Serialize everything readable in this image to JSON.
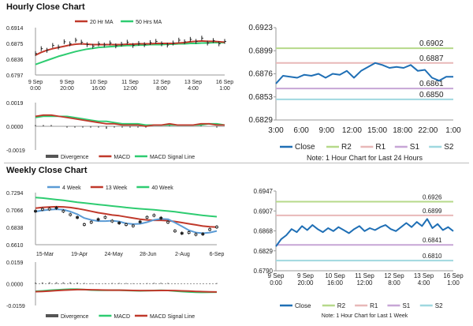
{
  "sections": {
    "hourly_title": "Hourly Close Chart",
    "weekly_title": "Weekly Close Chart"
  },
  "colors": {
    "price": "#222222",
    "ma20": "#c0392b",
    "ma50": "#2ecc71",
    "macd_red": "#c0392b",
    "macd_green": "#2ecc71",
    "hist": "#777777",
    "close_blue": "#1f6fb5",
    "r2": "#b6d98a",
    "r1": "#e8b8b8",
    "s1": "#c7a6d6",
    "s2": "#9fd8df",
    "wk4": "#5b9bd5",
    "wk13": "#c0392b",
    "wk40": "#2ecc71"
  },
  "chart_data": [
    {
      "id": "hourly-price",
      "type": "line",
      "legend": [
        "20 Hr MA",
        "50 Hrs MA"
      ],
      "y_ticks": [
        "0.6914",
        "0.6875",
        "0.6836",
        "0.6797"
      ],
      "ylim": [
        0.6797,
        0.6914
      ],
      "x_ticks": [
        "9 Sep\n0:00",
        "9 Sep\n20:00",
        "10 Sep\n16:00",
        "11 Sep\n12:00",
        "12 Sep\n8:00",
        "13 Sep\n4:00",
        "16 Sep\n1:00"
      ],
      "series": [
        {
          "name": "Close",
          "values": [
            0.685,
            0.6862,
            0.6858,
            0.687,
            0.6866,
            0.6879,
            0.6874,
            0.6883,
            0.6878,
            0.6872,
            0.6868,
            0.6874,
            0.6871,
            0.6876,
            0.6869,
            0.6873,
            0.6878,
            0.687,
            0.6875,
            0.6872,
            0.6877,
            0.688,
            0.6874,
            0.6871,
            0.6876,
            0.6883,
            0.6879,
            0.6885,
            0.688,
            0.6888,
            0.6876,
            0.6882,
            0.6874,
            0.688
          ]
        },
        {
          "name": "20 Hr MA",
          "values": [
            0.6846,
            0.6853,
            0.6858,
            0.6862,
            0.6865,
            0.6868,
            0.6871,
            0.6873,
            0.6874,
            0.6873,
            0.6872,
            0.6872,
            0.6872,
            0.6872,
            0.6872,
            0.6872,
            0.6873,
            0.6873,
            0.6874,
            0.6874,
            0.6874,
            0.6875,
            0.6875,
            0.6875,
            0.6875,
            0.6876,
            0.6877,
            0.6879,
            0.688,
            0.6881,
            0.688,
            0.688,
            0.6879,
            0.6878
          ]
        },
        {
          "name": "50 Hrs MA",
          "values": [
            0.6823,
            0.6828,
            0.6833,
            0.6838,
            0.6843,
            0.6847,
            0.6851,
            0.6855,
            0.6858,
            0.6861,
            0.6863,
            0.6865,
            0.6866,
            0.6867,
            0.6868,
            0.6869,
            0.687,
            0.687,
            0.6871,
            0.6871,
            0.6872,
            0.6872,
            0.6872,
            0.6873,
            0.6873,
            0.6874,
            0.6874,
            0.6875,
            0.6875,
            0.6876,
            0.6876,
            0.6877,
            0.6877,
            0.6877
          ]
        }
      ]
    },
    {
      "id": "hourly-macd",
      "type": "line",
      "legend": [
        "Divergence",
        "MACD",
        "MACD Signal Line"
      ],
      "y_ticks": [
        "0.0019",
        "0.0000",
        "-0.0019"
      ],
      "ylim": [
        -0.0019,
        0.0019
      ],
      "series": [
        {
          "name": "MACD",
          "values": [
            0.0008,
            0.0009,
            0.0009,
            0.0008,
            0.0007,
            0.0006,
            0.0005,
            0.0004,
            0.0003,
            0.0002,
            0.0002,
            0.0001,
            0.0001,
            0.0001,
            0.0,
            0.0001,
            0.0001,
            0.0002,
            0.0001,
            0.0001,
            0.0001,
            0.0002,
            0.0002,
            0.0001,
            0.0001
          ]
        },
        {
          "name": "MACD Signal Line",
          "values": [
            0.0007,
            0.0008,
            0.0008,
            0.0008,
            0.0008,
            0.0007,
            0.0006,
            0.0005,
            0.0004,
            0.0004,
            0.0003,
            0.0002,
            0.0002,
            0.0002,
            0.0001,
            0.0001,
            0.0001,
            0.0001,
            0.0001,
            0.0001,
            0.0001,
            0.0001,
            0.0002,
            0.0002,
            0.0001
          ]
        },
        {
          "name": "Divergence",
          "values": [
            0.0001,
            0.0001,
            0.0001,
            0.0,
            -0.0001,
            -0.0001,
            -0.0001,
            -0.0001,
            -0.0001,
            -0.0002,
            -0.0001,
            -0.0001,
            -0.0001,
            -0.0001,
            -0.0001,
            0.0,
            0.0,
            0.0001,
            0.0,
            0.0,
            0.0,
            0.0001,
            0.0,
            -0.0001,
            0.0
          ]
        }
      ]
    },
    {
      "id": "last24",
      "type": "line",
      "y_ticks": [
        "0.6923",
        "0.6899",
        "0.6876",
        "0.6853",
        "0.6829"
      ],
      "ylim": [
        0.6829,
        0.6923
      ],
      "x_ticks": [
        "3:00",
        "6:00",
        "9:00",
        "12:00",
        "15:00",
        "18:00",
        "22:00",
        "1:00"
      ],
      "levels": [
        {
          "name": "R2",
          "value": 0.6902,
          "label": "0.6902"
        },
        {
          "name": "R1",
          "value": 0.6887,
          "label": "0.6887"
        },
        {
          "name": "S1",
          "value": 0.6861,
          "label": "0.6861"
        },
        {
          "name": "S2",
          "value": 0.685,
          "label": "0.6850"
        }
      ],
      "series": [
        {
          "name": "Close",
          "values": [
            0.6866,
            0.6874,
            0.6873,
            0.6872,
            0.6875,
            0.6874,
            0.6876,
            0.6872,
            0.6876,
            0.6875,
            0.6879,
            0.6872,
            0.6879,
            0.6883,
            0.6887,
            0.6885,
            0.6882,
            0.6883,
            0.6882,
            0.6885,
            0.6879,
            0.688,
            0.6872,
            0.6869,
            0.6873,
            0.6873
          ]
        }
      ],
      "legend": [
        "Close",
        "R2",
        "R1",
        "S1",
        "S2"
      ],
      "note": "Note: 1 Hour Chart for Last 24 Hours"
    },
    {
      "id": "weekly-price",
      "type": "line",
      "legend": [
        "4 Week",
        "13 Week",
        "40 Week"
      ],
      "y_ticks": [
        "0.7294",
        "0.7066",
        "0.6838",
        "0.6610"
      ],
      "ylim": [
        0.661,
        0.7294
      ],
      "x_ticks": [
        "15-Mar",
        "19-Apr",
        "24-May",
        "28-Jun",
        "2-Aug",
        "6-Sep"
      ],
      "series": [
        {
          "name": "Close",
          "values": [
            0.705,
            0.7075,
            0.7078,
            0.7093,
            0.705,
            0.7005,
            0.6968,
            0.6875,
            0.6905,
            0.6942,
            0.697,
            0.692,
            0.6895,
            0.6875,
            0.6858,
            0.691,
            0.697,
            0.6995,
            0.696,
            0.6905,
            0.679,
            0.676,
            0.677,
            0.6745,
            0.675,
            0.681,
            0.6842
          ]
        },
        {
          "name": "4 Week",
          "values": [
            0.7045,
            0.706,
            0.707,
            0.7075,
            0.707,
            0.7045,
            0.701,
            0.696,
            0.6935,
            0.692,
            0.692,
            0.6925,
            0.6915,
            0.689,
            0.688,
            0.6885,
            0.6905,
            0.6935,
            0.695,
            0.6945,
            0.69,
            0.685,
            0.68,
            0.677,
            0.676,
            0.677,
            0.679
          ]
        },
        {
          "name": "13 Week",
          "values": [
            0.709,
            0.71,
            0.7105,
            0.7108,
            0.7106,
            0.7098,
            0.7085,
            0.7068,
            0.7048,
            0.703,
            0.7015,
            0.7,
            0.699,
            0.6975,
            0.696,
            0.6945,
            0.6935,
            0.693,
            0.693,
            0.6925,
            0.6915,
            0.69,
            0.6885,
            0.687,
            0.6855,
            0.6845,
            0.684
          ]
        },
        {
          "name": "40 Week",
          "values": [
            0.723,
            0.7222,
            0.7212,
            0.7202,
            0.7192,
            0.718,
            0.7168,
            0.7158,
            0.7148,
            0.7138,
            0.7128,
            0.7118,
            0.7108,
            0.7098,
            0.709,
            0.7082,
            0.7075,
            0.7068,
            0.706,
            0.7052,
            0.7042,
            0.703,
            0.7018,
            0.7006,
            0.6995,
            0.6985,
            0.6978
          ]
        }
      ]
    },
    {
      "id": "weekly-macd",
      "type": "line",
      "legend": [
        "Divergence",
        "MACD",
        "MACD Signal Line"
      ],
      "y_ticks": [
        "0.0159",
        "0.0000",
        "-0.0159"
      ],
      "ylim": [
        -0.0159,
        0.0159
      ],
      "series": [
        {
          "name": "MACD",
          "values": [
            -0.0055,
            -0.0052,
            -0.0048,
            -0.0045,
            -0.0042,
            -0.004,
            -0.004,
            -0.0043,
            -0.0046,
            -0.0048,
            -0.0048,
            -0.0047,
            -0.0047,
            -0.0049,
            -0.0051,
            -0.0052,
            -0.0051,
            -0.0049,
            -0.0048,
            -0.0049,
            -0.0053,
            -0.0057,
            -0.006,
            -0.0062,
            -0.0063,
            -0.0062,
            -0.0061
          ]
        },
        {
          "name": "MACD Signal Line",
          "values": [
            -0.0058,
            -0.0056,
            -0.0053,
            -0.005,
            -0.0047,
            -0.0045,
            -0.0043,
            -0.0043,
            -0.0044,
            -0.0045,
            -0.0046,
            -0.0047,
            -0.0047,
            -0.0048,
            -0.0049,
            -0.005,
            -0.005,
            -0.005,
            -0.0049,
            -0.0049,
            -0.005,
            -0.0052,
            -0.0054,
            -0.0056,
            -0.0058,
            -0.0059,
            -0.006
          ]
        },
        {
          "name": "Divergence",
          "values": [
            0.0003,
            0.0004,
            0.0005,
            0.0005,
            0.0005,
            0.0005,
            0.0003,
            0.0,
            -0.0002,
            -0.0003,
            -0.0002,
            0.0,
            0.0,
            -0.0001,
            -0.0002,
            -0.0002,
            -0.0001,
            0.0001,
            0.0001,
            0.0,
            -0.0003,
            -0.0005,
            -0.0006,
            -0.0006,
            -0.0005,
            -0.0003,
            -0.0001
          ]
        }
      ]
    },
    {
      "id": "last-week",
      "type": "line",
      "y_ticks": [
        "0.6947",
        "0.6907",
        "0.6868",
        "0.6829",
        "0.6790"
      ],
      "ylim": [
        0.679,
        0.6947
      ],
      "x_ticks": [
        "9 Sep\n0:00",
        "9 Sep\n20:00",
        "10 Sep\n16:00",
        "11 Sep\n12:00",
        "12 Sep\n8:00",
        "13 Sep\n4:00",
        "16 Sep\n1:00"
      ],
      "levels": [
        {
          "name": "R2",
          "value": 0.6926,
          "label": "0.6926"
        },
        {
          "name": "R1",
          "value": 0.6899,
          "label": "0.6899"
        },
        {
          "name": "S1",
          "value": 0.6841,
          "label": "0.6841"
        },
        {
          "name": "S2",
          "value": 0.681,
          "label": "0.6810"
        }
      ],
      "series": [
        {
          "name": "Close",
          "values": [
            0.6838,
            0.6852,
            0.686,
            0.6872,
            0.6866,
            0.6878,
            0.687,
            0.688,
            0.6872,
            0.6866,
            0.6874,
            0.6868,
            0.6876,
            0.687,
            0.6864,
            0.6872,
            0.6878,
            0.6868,
            0.6874,
            0.687,
            0.6876,
            0.688,
            0.6872,
            0.6868,
            0.6876,
            0.6884,
            0.6876,
            0.6886,
            0.6878,
            0.6892,
            0.6874,
            0.6882,
            0.687,
            0.6876,
            0.6868
          ]
        }
      ],
      "legend": [
        "Close",
        "R2",
        "R1",
        "S1",
        "S2"
      ],
      "note": "Note: 1 Hour Chart for Last 1 Week"
    }
  ]
}
